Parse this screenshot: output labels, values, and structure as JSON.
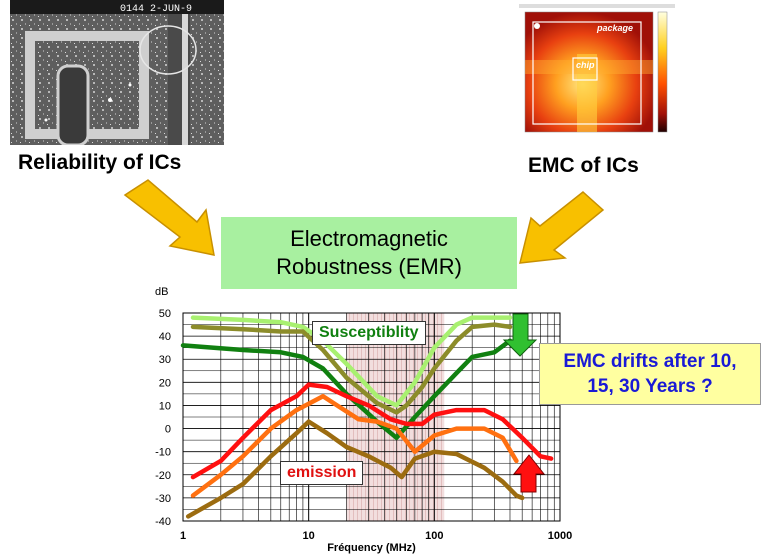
{
  "captions": {
    "reliability": "Reliability of ICs",
    "emc": "EMC of ICs"
  },
  "center_box": {
    "line1": "Electromagnetic",
    "line2": "Robustness (EMR)"
  },
  "sem_photo": {
    "stamp": "0144  2-JUN-9"
  },
  "emc_map": {
    "package_label": "package",
    "chip_label": "chip"
  },
  "labels": {
    "susceptibility": "Susceptiblity",
    "emission": "emission",
    "drift_line1": "EMC drifts after 10,",
    "drift_line2": "15, 30 Years ?"
  },
  "colors": {
    "emr_box": "#a8f0a0",
    "arrow_fill": "#f8c000",
    "arrow_stroke": "#c89000",
    "drift_text": "#1a1ad6",
    "drift_box": "#ffffa0",
    "green_arrow": "#30c030",
    "red_arrow": "#ff1010"
  },
  "chart_data": {
    "type": "line",
    "xlabel": "Fréquency (MHz)",
    "ylabel": "dB",
    "x_scale": "log",
    "xlim": [
      1,
      1000
    ],
    "ylim": [
      -40,
      50
    ],
    "x_ticks": [
      "1",
      "10",
      "100",
      "1000"
    ],
    "y_ticks": [
      "50",
      "40",
      "30",
      "20",
      "10",
      "0",
      "-10",
      "-20",
      "-30",
      "-40"
    ],
    "grid": true,
    "series": [
      {
        "color": "#a8f070",
        "group": "susceptibility",
        "points": [
          [
            1.2,
            48
          ],
          [
            3,
            47
          ],
          [
            6,
            46
          ],
          [
            9,
            44
          ],
          [
            13,
            38
          ],
          [
            20,
            28
          ],
          [
            35,
            14
          ],
          [
            50,
            10
          ],
          [
            70,
            20
          ],
          [
            100,
            35
          ],
          [
            150,
            45
          ],
          [
            200,
            48
          ],
          [
            300,
            48
          ],
          [
            400,
            48
          ]
        ]
      },
      {
        "color": "#8c8c2a",
        "group": "susceptibility",
        "points": [
          [
            1.2,
            44
          ],
          [
            3,
            43
          ],
          [
            6,
            42
          ],
          [
            9,
            42
          ],
          [
            13,
            34
          ],
          [
            20,
            22
          ],
          [
            35,
            11
          ],
          [
            50,
            7
          ],
          [
            60,
            10
          ],
          [
            80,
            18
          ],
          [
            100,
            26
          ],
          [
            150,
            38
          ],
          [
            200,
            44
          ],
          [
            300,
            45
          ],
          [
            400,
            44
          ]
        ]
      },
      {
        "color": "#108010",
        "group": "susceptibility",
        "points": [
          [
            1,
            36
          ],
          [
            3,
            34
          ],
          [
            6,
            33
          ],
          [
            9,
            31
          ],
          [
            13,
            26
          ],
          [
            20,
            15
          ],
          [
            35,
            3
          ],
          [
            50,
            -4
          ],
          [
            70,
            5
          ],
          [
            100,
            14
          ],
          [
            150,
            24
          ],
          [
            200,
            31
          ],
          [
            300,
            33
          ],
          [
            400,
            38
          ]
        ]
      },
      {
        "color": "#ff1010",
        "group": "emission",
        "points": [
          [
            1.2,
            -21
          ],
          [
            2,
            -14
          ],
          [
            3,
            -4
          ],
          [
            5,
            8
          ],
          [
            8,
            14
          ],
          [
            10,
            19
          ],
          [
            14,
            18
          ],
          [
            20,
            14
          ],
          [
            30,
            10
          ],
          [
            45,
            4
          ],
          [
            60,
            2
          ],
          [
            80,
            2
          ],
          [
            100,
            6
          ],
          [
            150,
            8
          ],
          [
            250,
            8
          ],
          [
            350,
            4
          ],
          [
            500,
            -4
          ],
          [
            700,
            -12
          ],
          [
            850,
            -13
          ]
        ]
      },
      {
        "color": "#ff7010",
        "group": "emission",
        "points": [
          [
            1.2,
            -29
          ],
          [
            2,
            -20
          ],
          [
            3,
            -12
          ],
          [
            5,
            0
          ],
          [
            8,
            8
          ],
          [
            13,
            14
          ],
          [
            18,
            9
          ],
          [
            25,
            4
          ],
          [
            35,
            3
          ],
          [
            50,
            0
          ],
          [
            70,
            -10
          ],
          [
            100,
            -3
          ],
          [
            150,
            0
          ],
          [
            250,
            0
          ],
          [
            350,
            -4
          ],
          [
            450,
            -14
          ]
        ]
      },
      {
        "color": "#9c6c10",
        "group": "emission",
        "points": [
          [
            1.1,
            -38
          ],
          [
            2,
            -30
          ],
          [
            3,
            -24
          ],
          [
            5,
            -12
          ],
          [
            8,
            -2
          ],
          [
            10,
            3
          ],
          [
            14,
            -2
          ],
          [
            20,
            -8
          ],
          [
            30,
            -12
          ],
          [
            45,
            -17
          ],
          [
            55,
            -21
          ],
          [
            70,
            -13
          ],
          [
            100,
            -10
          ],
          [
            150,
            -11
          ],
          [
            250,
            -17
          ],
          [
            350,
            -23
          ],
          [
            450,
            -29
          ],
          [
            500,
            -30
          ]
        ]
      }
    ],
    "shaded_band": {
      "x": [
        20,
        120
      ]
    }
  }
}
